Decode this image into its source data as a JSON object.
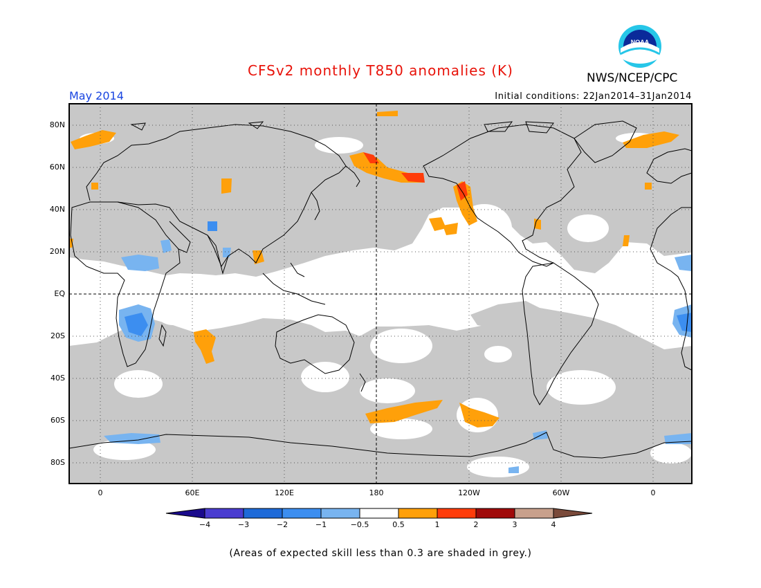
{
  "header": {
    "title": "CFSv2 monthly T850 anomalies (K)",
    "org": "NWS/NCEP/CPC",
    "month": "May 2014",
    "initial_conditions": "Initial conditions: 22Jan2014–31Jan2014",
    "logo_text": "NOAA"
  },
  "map": {
    "lat_labels": [
      "80N",
      "60N",
      "40N",
      "20N",
      "EQ",
      "20S",
      "40S",
      "60S",
      "80S"
    ],
    "lon_labels": [
      "0",
      "60E",
      "120E",
      "180",
      "120W",
      "60W",
      "0"
    ],
    "skill_mask_color": "#c8c8c8",
    "anomaly_regions": [
      {
        "name": "Gulf of Alaska",
        "class": "2"
      },
      {
        "name": "Bering Sea",
        "class": "0.5"
      },
      {
        "name": "US West Coast",
        "class": "1"
      },
      {
        "name": "Southeast Pacific",
        "class": "0.5"
      },
      {
        "name": "Southern Africa",
        "class": "-1"
      },
      {
        "name": "Southern Indian Ocean",
        "class": "0.5"
      },
      {
        "name": "Southern Ocean",
        "class": "0.5"
      },
      {
        "name": "Antarctic coast",
        "class": "-1"
      }
    ]
  },
  "colorbar": {
    "labels": [
      "−4",
      "−3",
      "−2",
      "−1",
      "−0.5",
      "0.5",
      "1",
      "2",
      "3",
      "4"
    ],
    "colors": [
      "#1a0a8c",
      "#4a3cd0",
      "#1e6ad8",
      "#3c8ef0",
      "#78b4f0",
      "#ffffff",
      "#ffa00a",
      "#ff3c0a",
      "#a00a0a",
      "#c8a08c",
      "#7a4a3a"
    ]
  },
  "footnote": "(Areas of expected skill less than 0.3 are shaded in grey.)"
}
